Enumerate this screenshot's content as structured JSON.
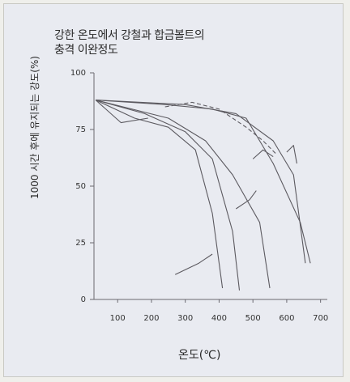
{
  "chart_data": {
    "type": "line",
    "title": [
      "강한 온도에서 강철과 합금볼트의",
      "충격 이완정도"
    ],
    "ylabel": "1000 시간 후에 유지되는 강도(%)",
    "xlabel": "온도(℃)",
    "xlim": [
      30,
      720
    ],
    "ylim": [
      0,
      100
    ],
    "xticks": [
      100,
      200,
      300,
      400,
      500,
      600,
      700
    ],
    "yticks": [
      0,
      25,
      50,
      75,
      100
    ],
    "series": [
      {
        "style": "solid",
        "points": [
          [
            35,
            88
          ],
          [
            150,
            80
          ],
          [
            250,
            76
          ],
          [
            330,
            66
          ],
          [
            380,
            38
          ],
          [
            410,
            5
          ]
        ]
      },
      {
        "style": "solid",
        "points": [
          [
            35,
            88
          ],
          [
            180,
            82
          ],
          [
            300,
            74
          ],
          [
            380,
            62
          ],
          [
            440,
            30
          ],
          [
            460,
            4
          ]
        ]
      },
      {
        "style": "solid",
        "points": [
          [
            35,
            88
          ],
          [
            250,
            80
          ],
          [
            360,
            70
          ],
          [
            440,
            55
          ],
          [
            520,
            34
          ],
          [
            550,
            5
          ]
        ]
      },
      {
        "style": "solid",
        "points": [
          [
            35,
            88
          ],
          [
            240,
            86
          ],
          [
            380,
            84
          ],
          [
            480,
            80
          ],
          [
            560,
            60
          ],
          [
            640,
            34
          ],
          [
            670,
            16
          ]
        ]
      },
      {
        "style": "solid",
        "points": [
          [
            35,
            88
          ],
          [
            300,
            86
          ],
          [
            450,
            82
          ],
          [
            560,
            70
          ],
          [
            620,
            55
          ],
          [
            655,
            16
          ]
        ]
      },
      {
        "style": "dashed",
        "points": [
          [
            240,
            85
          ],
          [
            320,
            87
          ],
          [
            400,
            84
          ],
          [
            480,
            76
          ],
          [
            530,
            70
          ],
          [
            570,
            64
          ]
        ]
      },
      {
        "style": "solid",
        "points": [
          [
            35,
            88
          ],
          [
            110,
            78
          ],
          [
            190,
            80
          ]
        ]
      },
      {
        "style": "solid",
        "points": [
          [
            270,
            11
          ],
          [
            340,
            16
          ],
          [
            380,
            20
          ]
        ]
      },
      {
        "style": "solid",
        "points": [
          [
            450,
            40
          ],
          [
            490,
            44
          ],
          [
            510,
            48
          ]
        ]
      },
      {
        "style": "solid",
        "points": [
          [
            500,
            62
          ],
          [
            530,
            66
          ],
          [
            560,
            63
          ]
        ]
      },
      {
        "style": "solid",
        "points": [
          [
            600,
            65
          ],
          [
            620,
            68
          ],
          [
            630,
            60
          ]
        ]
      }
    ]
  },
  "colors": {
    "line": "#5c5a60",
    "axis": "#6a6870"
  }
}
